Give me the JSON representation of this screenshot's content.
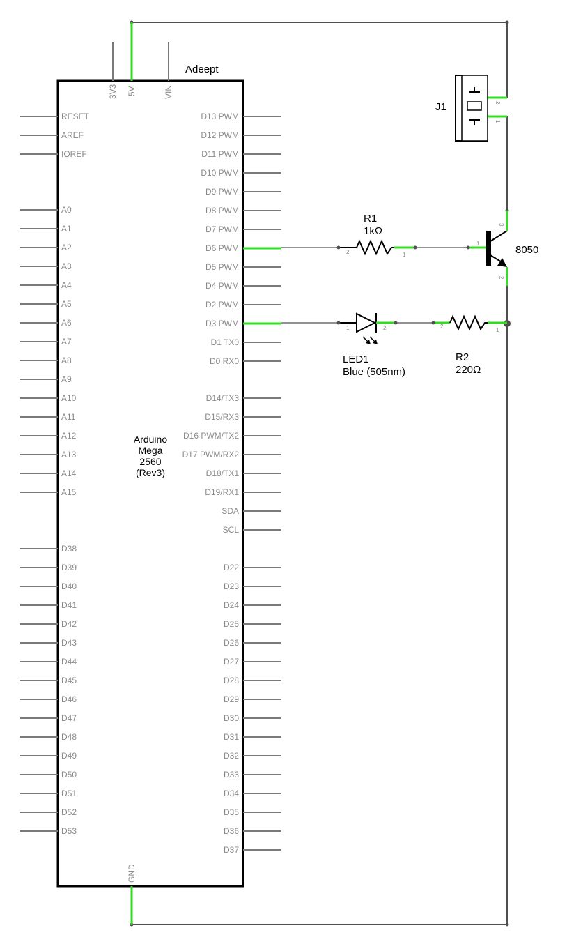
{
  "board": {
    "brand": "Adeept",
    "name_lines": [
      "Arduino",
      "Mega",
      "2560",
      "(Rev3)"
    ],
    "top_pins": [
      "3V3",
      "5V",
      "VIN"
    ],
    "bottom_pin": "GND",
    "left_pins_group1": [
      "RESET",
      "AREF",
      "IOREF"
    ],
    "left_pins_group2": [
      "A0",
      "A1",
      "A2",
      "A3",
      "A4",
      "A5",
      "A6",
      "A7",
      "A8",
      "A9",
      "A10",
      "A11",
      "A12",
      "A13",
      "A14",
      "A15"
    ],
    "left_pins_group3": [
      "D38",
      "D39",
      "D40",
      "D41",
      "D42",
      "D43",
      "D44",
      "D45",
      "D46",
      "D47",
      "D48",
      "D49",
      "D50",
      "D51",
      "D52",
      "D53"
    ],
    "right_pins_group1": [
      "D13 PWM",
      "D12 PWM",
      "D11 PWM",
      "D10 PWM",
      "D9 PWM",
      "D8 PWM",
      "D7 PWM",
      "D6 PWM",
      "D5 PWM",
      "D4 PWM",
      "D2 PWM",
      "D3 PWM",
      "D1 TX0",
      "D0 RX0"
    ],
    "right_pins_group2": [
      "D14/TX3",
      "D15/RX3",
      "D16 PWM/TX2",
      "D17 PWM/RX2",
      "D18/TX1",
      "D19/RX1",
      "SDA",
      "SCL"
    ],
    "right_pins_group3": [
      "D22",
      "D23",
      "D24",
      "D25",
      "D26",
      "D27",
      "D28",
      "D29",
      "D30",
      "D31",
      "D32",
      "D33",
      "D34",
      "D35",
      "D36",
      "D37"
    ]
  },
  "components": {
    "r1": {
      "ref": "R1",
      "value": "1kΩ",
      "pin_a": "2",
      "pin_b": "1"
    },
    "r2": {
      "ref": "R2",
      "value": "220Ω",
      "pin_a": "2",
      "pin_b": "1"
    },
    "led1": {
      "ref": "LED1",
      "value": "Blue (505nm)",
      "pin_a": "1",
      "pin_b": "2"
    },
    "q1": {
      "value": "8050",
      "pin_base": "1",
      "pin_collector": "3",
      "pin_emitter": "2"
    },
    "j1": {
      "ref": "J1",
      "pin_top": "2",
      "pin_bottom": "1"
    }
  },
  "colors": {
    "wire": "#505050",
    "connected_pin": "#33dd22",
    "unconnected_pin": "#7a7a7a",
    "pin_label": "#8a8a8a",
    "outline": "#000000"
  }
}
